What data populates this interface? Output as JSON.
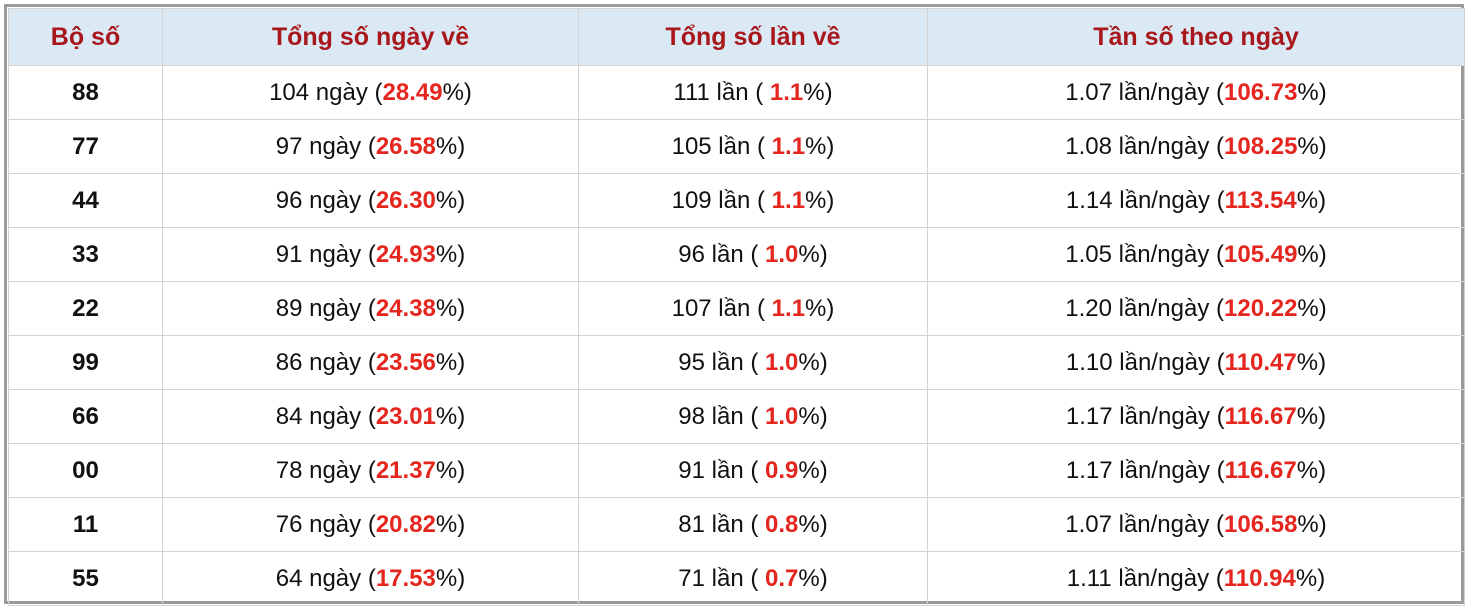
{
  "table": {
    "headers": [
      "Bộ số",
      "Tổng số ngày về",
      "Tổng số lần về",
      "Tần số theo ngày"
    ],
    "rows": [
      {
        "code": "88",
        "days": [
          "104 ngày (",
          "28.49",
          "%)"
        ],
        "times": [
          "111 lần ( ",
          "1.1",
          "%)"
        ],
        "freq": [
          "1.07 lần/ngày (",
          "106.73",
          "%)"
        ]
      },
      {
        "code": "77",
        "days": [
          "97 ngày (",
          "26.58",
          "%)"
        ],
        "times": [
          "105 lần ( ",
          "1.1",
          "%)"
        ],
        "freq": [
          "1.08 lần/ngày (",
          "108.25",
          "%)"
        ]
      },
      {
        "code": "44",
        "days": [
          "96 ngày (",
          "26.30",
          "%)"
        ],
        "times": [
          "109 lần ( ",
          "1.1",
          "%)"
        ],
        "freq": [
          "1.14 lần/ngày (",
          "113.54",
          "%)"
        ]
      },
      {
        "code": "33",
        "days": [
          "91 ngày (",
          "24.93",
          "%)"
        ],
        "times": [
          "96 lần ( ",
          "1.0",
          "%)"
        ],
        "freq": [
          "1.05 lần/ngày (",
          "105.49",
          "%)"
        ]
      },
      {
        "code": "22",
        "days": [
          "89 ngày (",
          "24.38",
          "%)"
        ],
        "times": [
          "107 lần ( ",
          "1.1",
          "%)"
        ],
        "freq": [
          "1.20 lần/ngày (",
          "120.22",
          "%)"
        ]
      },
      {
        "code": "99",
        "days": [
          "86 ngày (",
          "23.56",
          "%)"
        ],
        "times": [
          "95 lần ( ",
          "1.0",
          "%)"
        ],
        "freq": [
          "1.10 lần/ngày (",
          "110.47",
          "%)"
        ]
      },
      {
        "code": "66",
        "days": [
          "84 ngày (",
          "23.01",
          "%)"
        ],
        "times": [
          "98 lần ( ",
          "1.0",
          "%)"
        ],
        "freq": [
          "1.17 lần/ngày (",
          "116.67",
          "%)"
        ]
      },
      {
        "code": "00",
        "days": [
          "78 ngày (",
          "21.37",
          "%)"
        ],
        "times": [
          "91 lần ( ",
          "0.9",
          "%)"
        ],
        "freq": [
          "1.17 lần/ngày (",
          "116.67",
          "%)"
        ]
      },
      {
        "code": "11",
        "days": [
          "76 ngày (",
          "20.82",
          "%)"
        ],
        "times": [
          "81 lần ( ",
          "0.8",
          "%)"
        ],
        "freq": [
          "1.07 lần/ngày (",
          "106.58",
          "%)"
        ]
      },
      {
        "code": "55",
        "days": [
          "64 ngày (",
          "17.53",
          "%)"
        ],
        "times": [
          "71 lần ( ",
          "0.7",
          "%)"
        ],
        "freq": [
          "1.11 lần/ngày (",
          "110.94",
          "%)"
        ]
      }
    ]
  }
}
